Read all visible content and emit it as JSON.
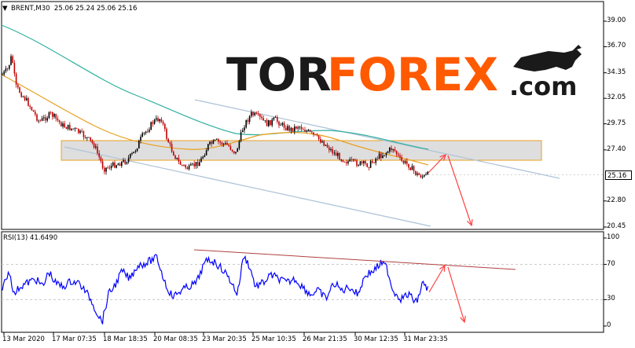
{
  "header": {
    "symbol": "BRENT,M30",
    "ohlc": "25.06 25.24 25.06 25.16",
    "menu_arrow": "▼"
  },
  "rsi": {
    "title": "RSI(13) 41.6490",
    "levels": [
      "100",
      "70",
      "30",
      "0"
    ],
    "level_values": [
      100,
      70,
      30,
      0
    ]
  },
  "price_axis": {
    "labels": [
      "39.00",
      "36.70",
      "34.35",
      "32.05",
      "29.75",
      "27.40",
      "25.16",
      "22.80",
      "20.45"
    ],
    "current_price": "25.16"
  },
  "time_axis": {
    "labels": [
      "13 Mar 2020",
      "17 Mar 07:35",
      "18 Mar 18:35",
      "20 Mar 08:35",
      "23 Mar 20:35",
      "25 Mar 10:35",
      "26 Mar 21:35",
      "30 Mar 12:35",
      "31 Mar 23:35"
    ]
  },
  "logo": {
    "tor": "TOR",
    "forex": "FOREX",
    "com": ".com",
    "colors": {
      "tor": "#1a1a1a",
      "forex": "#ff5a00",
      "com": "#1a1a1a"
    }
  },
  "colors": {
    "candle_up": "#000000",
    "candle_down": "#c00000",
    "ma_fast": "#e8a020",
    "ma_slow": "#30b0a0",
    "channel": "#b0c4d8",
    "zone_fill": "#d8d8d8",
    "zone_border": "#e8a020",
    "arrow": "#ff4040",
    "rsi_line": "#0000ff",
    "rsi_trend": "#b04040"
  }
}
